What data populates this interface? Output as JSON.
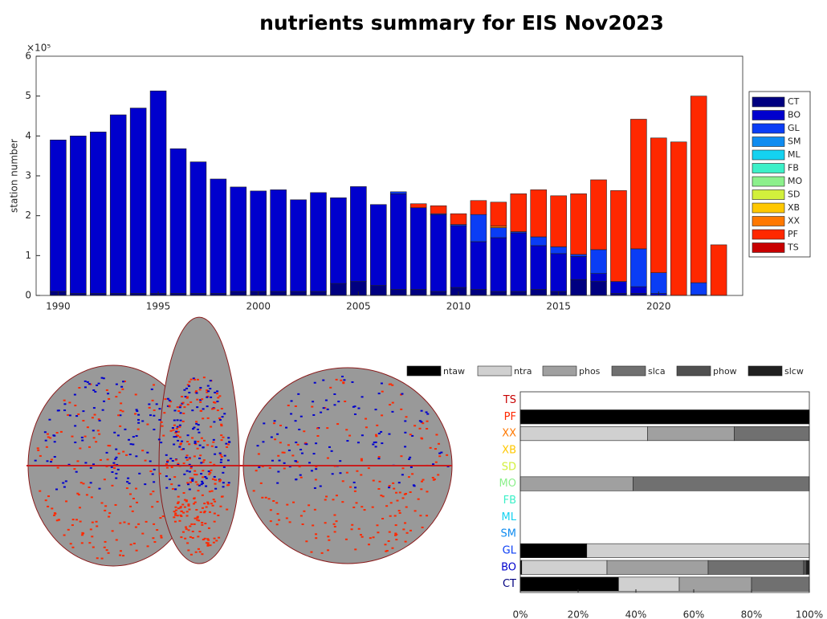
{
  "chart_data": [
    {
      "type": "bar",
      "stacked": true,
      "title": "nutrients summary for EIS Nov2023",
      "y_label": "station number",
      "y_multiplier": "×10⁵",
      "x": [
        1990,
        1991,
        1992,
        1993,
        1994,
        1995,
        1996,
        1997,
        1998,
        1999,
        2000,
        2001,
        2002,
        2003,
        2004,
        2005,
        2006,
        2007,
        2008,
        2009,
        2010,
        2011,
        2012,
        2013,
        2014,
        2015,
        2016,
        2017,
        2018,
        2019,
        2020,
        2021,
        2022,
        2023
      ],
      "xlim": [
        1988.9,
        2024.2
      ],
      "xticks": [
        1990,
        1995,
        2000,
        2005,
        2010,
        2015,
        2020
      ],
      "ylim": [
        0,
        6
      ],
      "yticks": [
        0,
        1,
        2,
        3,
        4,
        5,
        6
      ],
      "legend": "right",
      "series": [
        {
          "name": "CT",
          "color": "#000080",
          "values": [
            0.1,
            0.05,
            0.05,
            0.05,
            0.05,
            0.05,
            0.05,
            0.05,
            0.05,
            0.1,
            0.1,
            0.1,
            0.1,
            0.1,
            0.3,
            0.35,
            0.25,
            0.15,
            0.15,
            0.1,
            0.2,
            0.15,
            0.1,
            0.1,
            0.15,
            0.1,
            0.4,
            0.35,
            0.05,
            0.05,
            0,
            0,
            0,
            0
          ]
        },
        {
          "name": "BO",
          "color": "#0000cd",
          "values": [
            3.8,
            3.95,
            4.05,
            4.48,
            4.65,
            5.08,
            3.63,
            3.3,
            2.87,
            2.62,
            2.52,
            2.55,
            2.3,
            2.48,
            2.15,
            2.38,
            2.03,
            2.4,
            2.05,
            1.93,
            1.55,
            1.2,
            1.35,
            1.47,
            1.1,
            0.95,
            0.58,
            0.2,
            0.3,
            0.17,
            0.05,
            0,
            0.02,
            0
          ]
        },
        {
          "name": "GL",
          "color": "#0a3df5",
          "values": [
            0,
            0,
            0,
            0,
            0,
            0,
            0,
            0,
            0,
            0,
            0,
            0,
            0,
            0,
            0,
            0,
            0,
            0.05,
            0,
            0.02,
            0.03,
            0.68,
            0.25,
            0.03,
            0.22,
            0.17,
            0.05,
            0.6,
            0,
            0.95,
            0.52,
            0,
            0.3,
            0
          ]
        },
        {
          "name": "SM",
          "color": "#0f8cf0",
          "values": [
            0,
            0,
            0,
            0,
            0,
            0,
            0,
            0,
            0,
            0,
            0,
            0,
            0,
            0,
            0,
            0,
            0,
            0,
            0,
            0,
            0,
            0,
            0,
            0,
            0,
            0,
            0,
            0,
            0,
            0,
            0,
            0,
            0,
            0
          ]
        },
        {
          "name": "ML",
          "color": "#14d2f0",
          "values": [
            0,
            0,
            0,
            0,
            0,
            0,
            0,
            0,
            0,
            0,
            0,
            0,
            0,
            0,
            0,
            0,
            0,
            0,
            0,
            0,
            0,
            0,
            0,
            0,
            0,
            0,
            0,
            0,
            0,
            0,
            0,
            0,
            0,
            0
          ]
        },
        {
          "name": "FB",
          "color": "#3cf0c8",
          "values": [
            0,
            0,
            0,
            0,
            0,
            0,
            0,
            0,
            0,
            0,
            0,
            0,
            0,
            0,
            0,
            0,
            0,
            0,
            0,
            0,
            0,
            0,
            0,
            0,
            0,
            0,
            0,
            0,
            0,
            0,
            0,
            0,
            0,
            0
          ]
        },
        {
          "name": "MO",
          "color": "#8cf08c",
          "values": [
            0,
            0,
            0,
            0,
            0,
            0,
            0,
            0,
            0,
            0,
            0,
            0,
            0,
            0,
            0,
            0,
            0,
            0,
            0,
            0,
            0,
            0,
            0,
            0,
            0,
            0,
            0,
            0,
            0,
            0,
            0,
            0,
            0,
            0
          ]
        },
        {
          "name": "SD",
          "color": "#d2f03c",
          "values": [
            0,
            0,
            0,
            0,
            0,
            0,
            0,
            0,
            0,
            0,
            0,
            0,
            0,
            0,
            0,
            0,
            0,
            0,
            0,
            0,
            0,
            0,
            0,
            0,
            0,
            0,
            0,
            0,
            0,
            0,
            0,
            0,
            0,
            0
          ]
        },
        {
          "name": "XB",
          "color": "#ffc800",
          "values": [
            0,
            0,
            0,
            0,
            0,
            0,
            0,
            0,
            0,
            0,
            0,
            0,
            0,
            0,
            0,
            0,
            0,
            0,
            0,
            0,
            0,
            0,
            0,
            0,
            0,
            0,
            0,
            0,
            0,
            0,
            0,
            0,
            0,
            0
          ]
        },
        {
          "name": "XX",
          "color": "#ff7800",
          "values": [
            0,
            0,
            0,
            0,
            0,
            0,
            0,
            0,
            0,
            0,
            0,
            0,
            0,
            0,
            0,
            0,
            0,
            0,
            0,
            0,
            0,
            0,
            0.04,
            0,
            0,
            0,
            0,
            0,
            0,
            0,
            0,
            0,
            0,
            0
          ]
        },
        {
          "name": "PF",
          "color": "#ff2800",
          "values": [
            0,
            0,
            0,
            0,
            0,
            0,
            0,
            0,
            0,
            0,
            0,
            0,
            0,
            0,
            0,
            0,
            0,
            0,
            0.1,
            0.2,
            0.27,
            0.35,
            0.6,
            0.95,
            1.18,
            1.28,
            1.52,
            1.75,
            2.28,
            3.25,
            3.38,
            3.85,
            4.68,
            1.27
          ]
        },
        {
          "name": "TS",
          "color": "#c80000",
          "values": [
            0,
            0,
            0,
            0,
            0,
            0,
            0,
            0,
            0,
            0,
            0,
            0,
            0,
            0,
            0,
            0,
            0,
            0,
            0,
            0,
            0,
            0,
            0,
            0,
            0,
            0,
            0,
            0,
            0,
            0,
            0,
            0,
            0,
            0
          ]
        }
      ]
    },
    {
      "type": "barh",
      "stacked": true,
      "categories": [
        "CT",
        "BO",
        "GL",
        "SM",
        "ML",
        "FB",
        "MO",
        "SD",
        "XB",
        "XX",
        "PF",
        "TS"
      ],
      "category_colors": [
        "#000080",
        "#0000cd",
        "#0a3df5",
        "#0f8cf0",
        "#14d2f0",
        "#3cf0c8",
        "#8cf08c",
        "#d2f03c",
        "#ffc800",
        "#ff7800",
        "#ff2800",
        "#c80000"
      ],
      "xlim": [
        0,
        100
      ],
      "legend": "top",
      "xticks": [
        {
          "value": 0,
          "label": "0%"
        },
        {
          "value": 20,
          "label": "20%"
        },
        {
          "value": 40,
          "label": "40%"
        },
        {
          "value": 60,
          "label": "60%"
        },
        {
          "value": 80,
          "label": "80%"
        },
        {
          "value": 100,
          "label": "100%"
        }
      ],
      "series": [
        {
          "name": "ntaw",
          "color": "#000000",
          "values": [
            34,
            0.5,
            23,
            0,
            0,
            0,
            0,
            0,
            0,
            0,
            100,
            0
          ]
        },
        {
          "name": "ntra",
          "color": "#d0d0d0",
          "values": [
            21,
            29.5,
            77,
            0,
            0,
            0,
            0,
            0,
            0,
            44,
            0,
            0
          ]
        },
        {
          "name": "phos",
          "color": "#a0a0a0",
          "values": [
            25,
            35,
            0,
            0,
            0,
            0,
            39,
            0,
            0,
            30,
            0,
            0
          ]
        },
        {
          "name": "slca",
          "color": "#707070",
          "values": [
            20,
            33,
            0,
            0,
            0,
            0,
            61,
            0,
            0,
            26,
            0,
            0
          ]
        },
        {
          "name": "phow",
          "color": "#505050",
          "values": [
            0,
            1,
            0,
            0,
            0,
            0,
            0,
            0,
            0,
            0,
            0,
            0
          ]
        },
        {
          "name": "slcw",
          "color": "#202020",
          "values": [
            0,
            1,
            0,
            0,
            0,
            0,
            0,
            0,
            0,
            0,
            0,
            0
          ]
        }
      ]
    }
  ]
}
